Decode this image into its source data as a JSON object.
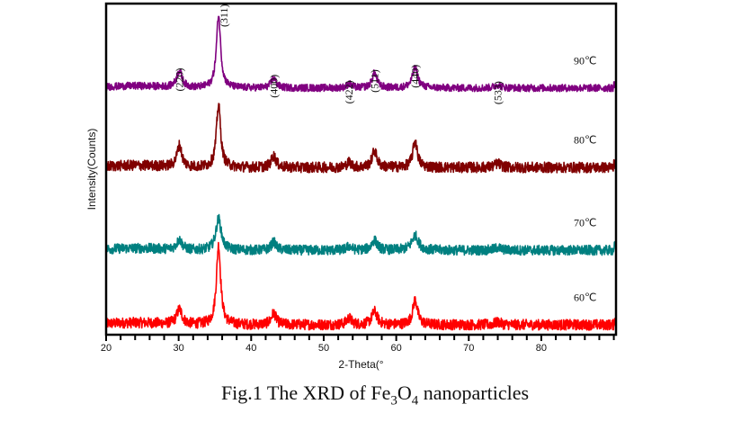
{
  "chart_data": {
    "type": "line",
    "title": "",
    "xlabel": "2-Theta(°",
    "ylabel": "Intensity(Counts)",
    "xlim": [
      20,
      90.3
    ],
    "xticks": [
      20,
      30,
      40,
      50,
      60,
      70,
      80
    ],
    "xminor_step": 2,
    "ylim": [
      0,
      100
    ],
    "grid": false,
    "legend": "inline-right",
    "peaks": [
      {
        "label": "(220)",
        "x": 30.1
      },
      {
        "label": "(311)",
        "x": 35.5
      },
      {
        "label": "(400)",
        "x": 43.1
      },
      {
        "label": "(422)",
        "x": 53.5
      },
      {
        "label": "(511)",
        "x": 57.0
      },
      {
        "label": "(440)",
        "x": 62.6
      },
      {
        "label": "(533)",
        "x": 74.0
      }
    ],
    "series": [
      {
        "name": "60℃",
        "color": "#ff0000",
        "baseline": 3,
        "noise": 1.6,
        "peak_heights": [
          4.5,
          24,
          3.5,
          2,
          4,
          7.5,
          0.8
        ],
        "peak_widths": [
          0.45,
          0.35,
          0.4,
          0.4,
          0.45,
          0.4,
          0.5
        ]
      },
      {
        "name": "70℃",
        "color": "#008080",
        "baseline": 25.5,
        "noise": 1.5,
        "peak_heights": [
          3,
          9.5,
          2.5,
          1.2,
          3,
          4.5,
          0.8
        ],
        "peak_widths": [
          0.45,
          0.45,
          0.4,
          0.4,
          0.45,
          0.55,
          0.5
        ]
      },
      {
        "name": "80℃",
        "color": "#800000",
        "baseline": 50.5,
        "noise": 1.6,
        "peak_heights": [
          6.5,
          19,
          3.5,
          1.5,
          5,
          8,
          1.2
        ],
        "peak_widths": [
          0.4,
          0.35,
          0.4,
          0.4,
          0.4,
          0.38,
          0.5
        ]
      },
      {
        "name": "90℃",
        "color": "#800080",
        "baseline": 74.5,
        "noise": 1.1,
        "peak_heights": [
          5,
          22,
          3,
          1.2,
          4.5,
          6,
          1.0
        ],
        "peak_widths": [
          0.45,
          0.35,
          0.4,
          0.4,
          0.4,
          0.45,
          0.5
        ]
      }
    ]
  },
  "caption": {
    "prefix": "Fig.1 The XRD of Fe",
    "sub1": "3",
    "mid": "O",
    "sub2": "4",
    "suffix": " nanoparticles"
  }
}
